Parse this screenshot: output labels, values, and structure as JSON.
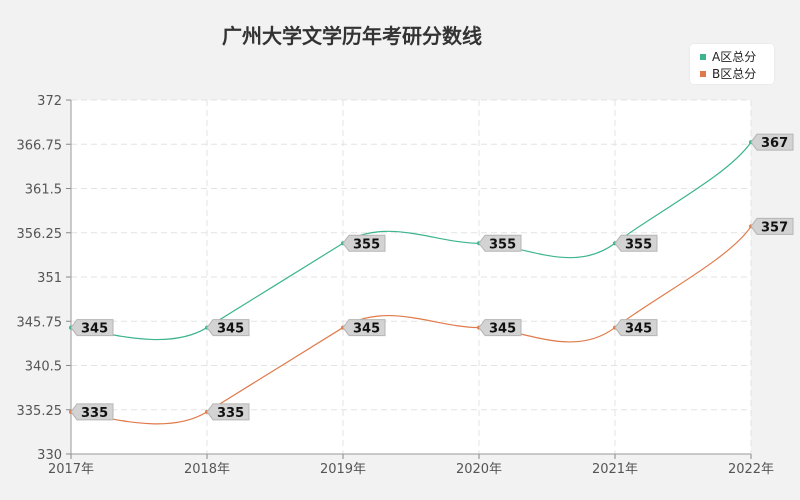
{
  "chart_data": {
    "type": "line",
    "title": "广州大学文学历年考研分数线",
    "xlabel": "",
    "ylabel": "",
    "categories": [
      "2017年",
      "2018年",
      "2019年",
      "2020年",
      "2021年",
      "2022年"
    ],
    "series": [
      {
        "name": "A区总分",
        "color": "#3cb48f",
        "values": [
          345,
          345,
          355,
          355,
          355,
          367
        ]
      },
      {
        "name": "B区总分",
        "color": "#e07a4b",
        "values": [
          335,
          335,
          345,
          345,
          345,
          357
        ]
      }
    ],
    "ylim": [
      330,
      372
    ],
    "yticks": [
      "330",
      "335.25",
      "340.5",
      "345.75",
      "351",
      "356.25",
      "361.5",
      "366.75",
      "372"
    ],
    "grid": true,
    "legend_position": "top-right"
  }
}
